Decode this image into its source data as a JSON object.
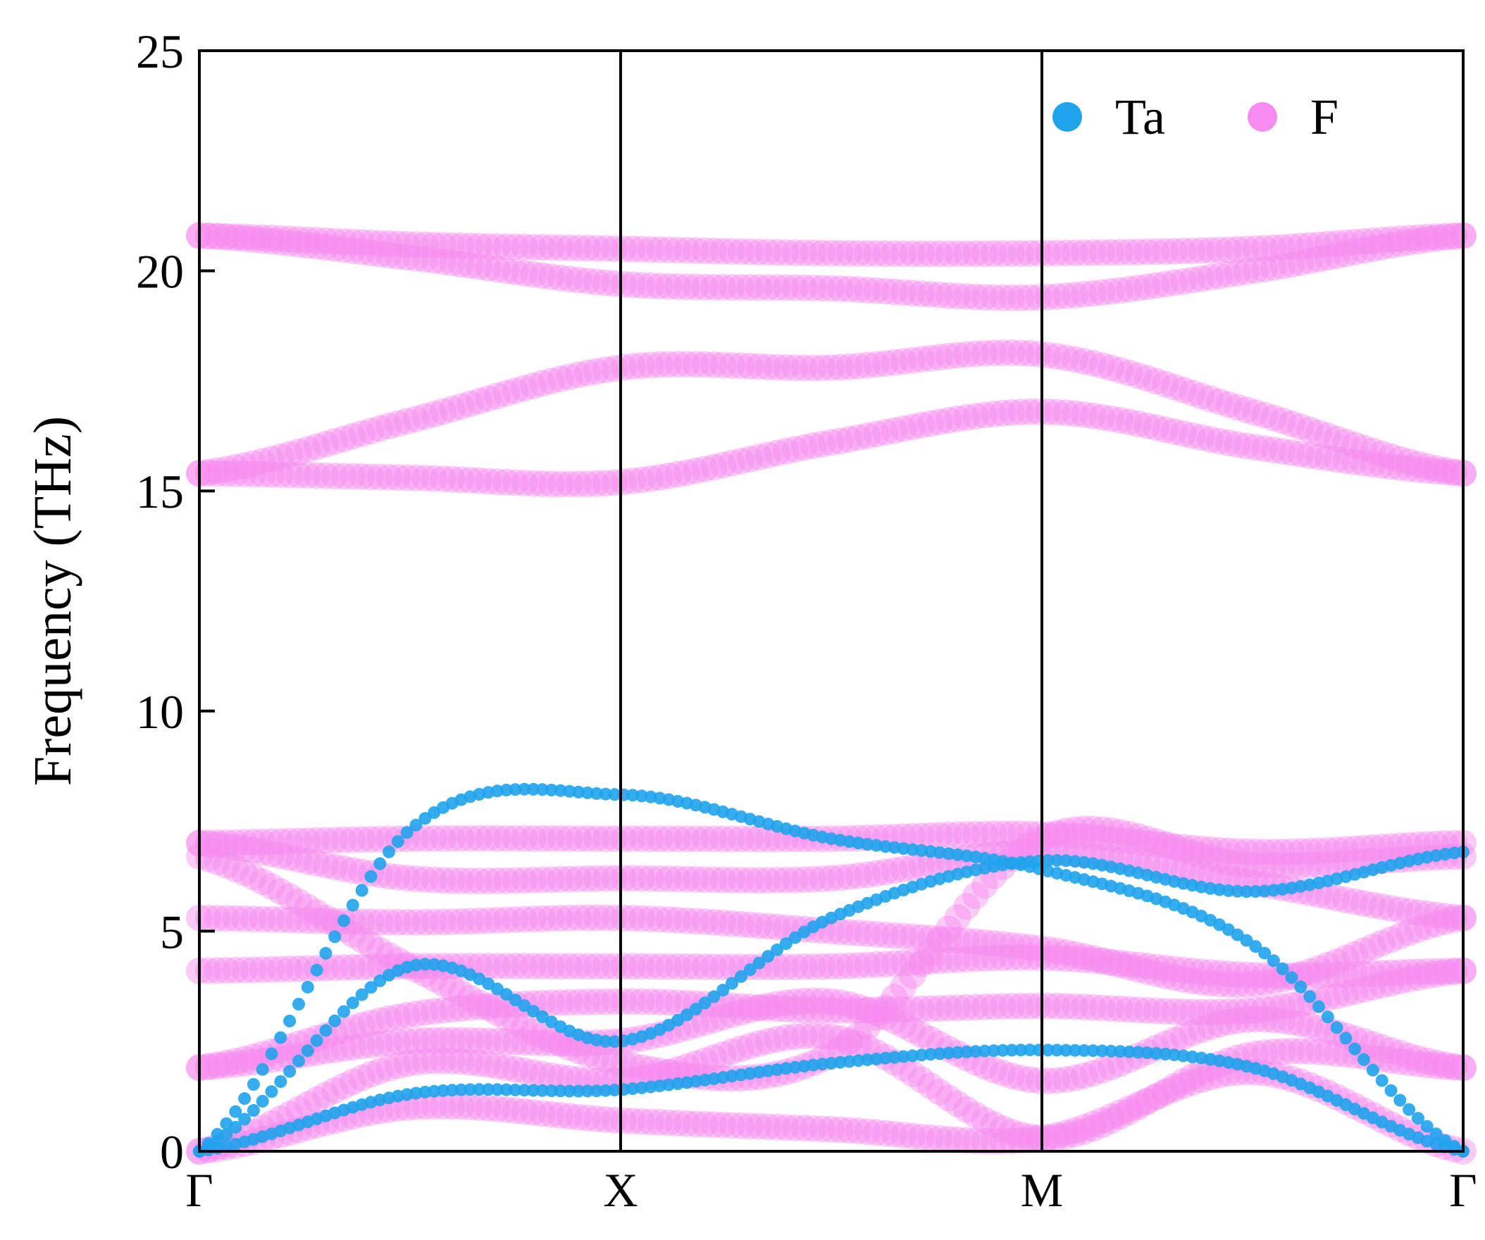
{
  "chart_data": {
    "type": "scatter",
    "title": "",
    "xlabel": "",
    "ylabel": "Frequency (THz)",
    "ylim": [
      0,
      25
    ],
    "yticks": [
      0,
      5,
      10,
      15,
      20,
      25
    ],
    "xlim": [
      0,
      3
    ],
    "high_symmetry_points": [
      {
        "label": "Γ",
        "x": 0
      },
      {
        "label": "X",
        "x": 1
      },
      {
        "label": "M",
        "x": 2
      },
      {
        "label": "Γ",
        "x": 3
      }
    ],
    "grid": false,
    "legend_position": "top-right",
    "legend": [
      {
        "name": "Ta",
        "color": "#1fa3ec"
      },
      {
        "name": "F",
        "color": "#f78cf0"
      }
    ],
    "series": [
      {
        "name": "Ta",
        "color": "#1fa3ec",
        "bands": [
          {
            "x": [
              0,
              0.5,
              1,
              1.5,
              2,
              2.5,
              3
            ],
            "y": [
              0.0,
              1.3,
              1.4,
              2.0,
              2.3,
              1.9,
              0.0
            ]
          },
          {
            "x": [
              0,
              0.5,
              1,
              1.5,
              2,
              2.5,
              3
            ],
            "y": [
              0.0,
              4.2,
              2.5,
              5.3,
              6.6,
              5.9,
              6.8
            ]
          },
          {
            "x": [
              0,
              0.5,
              1,
              1.5,
              2,
              2.5,
              3
            ],
            "y": [
              0.0,
              7.3,
              8.1,
              7.1,
              6.4,
              4.7,
              0.0
            ]
          }
        ]
      },
      {
        "name": "F",
        "color": "#f78cf0",
        "bands": [
          {
            "x": [
              0,
              0.5,
              1,
              1.5,
              2,
              2.5,
              3
            ],
            "y": [
              0.0,
              1.0,
              0.7,
              0.5,
              0.3,
              1.8,
              0.0
            ]
          },
          {
            "x": [
              0,
              0.5,
              1,
              1.5,
              2,
              2.5,
              3
            ],
            "y": [
              0.0,
              2.0,
              1.6,
              2.6,
              0.3,
              2.2,
              1.9
            ]
          },
          {
            "x": [
              0,
              0.5,
              1,
              1.5,
              2,
              2.5,
              3
            ],
            "y": [
              1.9,
              2.5,
              2.5,
              3.4,
              1.6,
              3.0,
              1.9
            ]
          },
          {
            "x": [
              0,
              0.5,
              1,
              1.5,
              2,
              2.5,
              3
            ],
            "y": [
              1.9,
              3.1,
              3.4,
              3.2,
              3.3,
              3.2,
              4.1
            ]
          },
          {
            "x": [
              0,
              0.5,
              1,
              1.5,
              2,
              2.5,
              3
            ],
            "y": [
              4.1,
              4.2,
              4.2,
              4.2,
              4.4,
              4.0,
              4.1
            ]
          },
          {
            "x": [
              0,
              0.5,
              1,
              1.5,
              2,
              2.5,
              3
            ],
            "y": [
              5.3,
              5.2,
              5.3,
              5.0,
              4.6,
              3.8,
              5.3
            ]
          },
          {
            "x": [
              0,
              0.5,
              1,
              1.5,
              2,
              2.5,
              3
            ],
            "y": [
              6.7,
              4.2,
              2.0,
              2.2,
              7.1,
              6.5,
              6.7
            ]
          },
          {
            "x": [
              0,
              0.5,
              1,
              1.5,
              2,
              2.5,
              3
            ],
            "y": [
              7.0,
              6.2,
              6.2,
              6.2,
              6.8,
              6.1,
              5.3
            ]
          },
          {
            "x": [
              0,
              0.5,
              1,
              1.5,
              2,
              2.5,
              3
            ],
            "y": [
              7.0,
              7.1,
              7.1,
              7.1,
              7.2,
              6.8,
              7.0
            ]
          },
          {
            "x": [
              0,
              0.5,
              1,
              1.5,
              2,
              2.5,
              3
            ],
            "y": [
              15.4,
              15.3,
              15.2,
              16.1,
              16.8,
              16.0,
              15.4
            ]
          },
          {
            "x": [
              0,
              0.5,
              1,
              1.5,
              2,
              2.5,
              3
            ],
            "y": [
              15.4,
              16.6,
              17.8,
              17.8,
              18.1,
              16.8,
              15.4
            ]
          },
          {
            "x": [
              0,
              0.5,
              1,
              1.5,
              2,
              2.5,
              3
            ],
            "y": [
              20.8,
              20.3,
              19.7,
              19.6,
              19.4,
              20.0,
              20.8
            ]
          },
          {
            "x": [
              0,
              0.5,
              1,
              1.5,
              2,
              2.5,
              3
            ],
            "y": [
              20.8,
              20.6,
              20.5,
              20.4,
              20.4,
              20.5,
              20.8
            ]
          }
        ]
      }
    ]
  }
}
